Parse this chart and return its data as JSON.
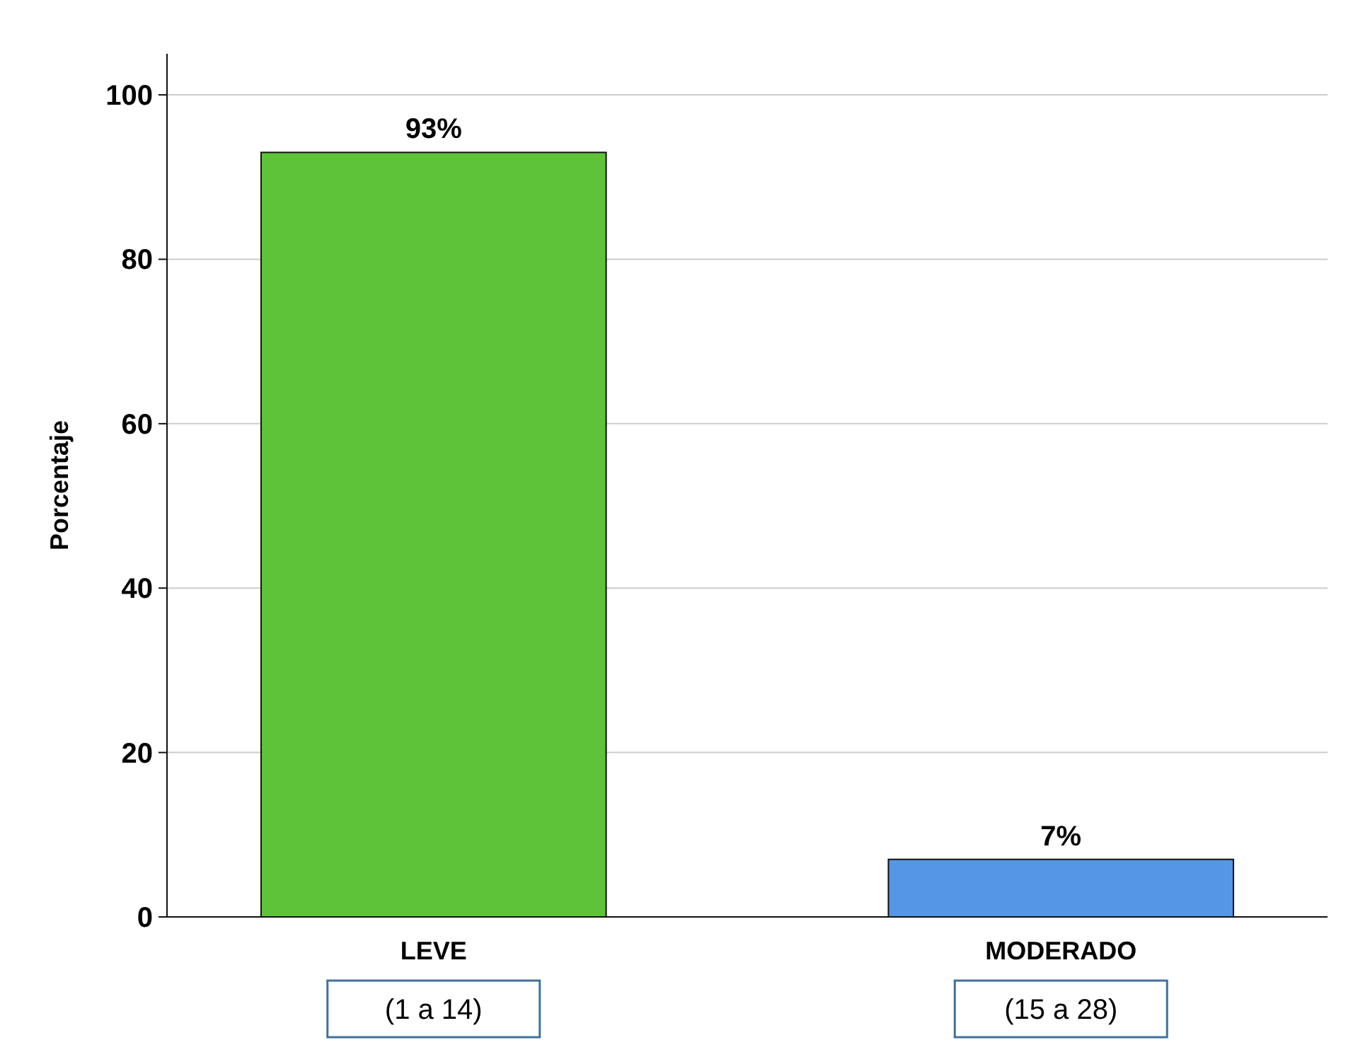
{
  "chart_data": {
    "type": "bar",
    "ylabel": "Porcentaje",
    "categories": [
      "LEVE",
      "MODERADO"
    ],
    "values": [
      93,
      7
    ],
    "colors": [
      "#5fc33a",
      "#5596e6"
    ],
    "value_labels": [
      "93%",
      "7%"
    ],
    "ylim": [
      0,
      105
    ],
    "yticks": [
      0,
      20,
      40,
      60,
      80,
      100
    ],
    "grid": "y",
    "annotations": [
      "(1 a 14)",
      "(15 a 28)"
    ]
  }
}
